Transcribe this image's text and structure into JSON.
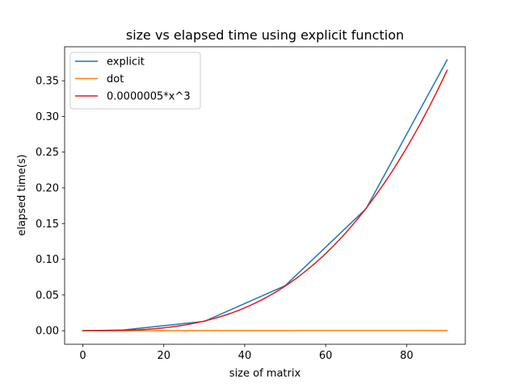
{
  "chart_data": {
    "type": "line",
    "title": "size vs elapsed time using explicit function",
    "xlabel": "size of matrix",
    "ylabel": "elapsed time(s)",
    "xlim": [
      -4.5,
      94.5
    ],
    "ylim": [
      -0.019,
      0.3975
    ],
    "x_ticks": [
      0,
      20,
      40,
      60,
      80
    ],
    "x_tick_labels": [
      "0",
      "20",
      "40",
      "60",
      "80"
    ],
    "y_ticks": [
      0.0,
      0.05,
      0.1,
      0.15,
      0.2,
      0.25,
      0.3,
      0.35
    ],
    "y_tick_labels": [
      "0.00",
      "0.05",
      "0.10",
      "0.15",
      "0.20",
      "0.25",
      "0.30",
      "0.35"
    ],
    "grid": false,
    "legend_position": "top-left",
    "series": [
      {
        "name": "explicit",
        "color": "#1f77b4",
        "x": [
          0,
          10,
          30,
          50,
          70,
          90
        ],
        "y": [
          0.0,
          0.001,
          0.013,
          0.063,
          0.171,
          0.379
        ]
      },
      {
        "name": "dot",
        "color": "#ff7f0e",
        "x": [
          0,
          10,
          30,
          50,
          70,
          90
        ],
        "y": [
          0.0,
          0.0,
          0.0,
          0.0001,
          0.0002,
          0.0003
        ]
      },
      {
        "name": "0.0000005*x^3",
        "color": "#e31a1c",
        "formula_coefficient": 5e-07,
        "formula_exponent": 3,
        "x_range": [
          0,
          90
        ]
      }
    ]
  }
}
